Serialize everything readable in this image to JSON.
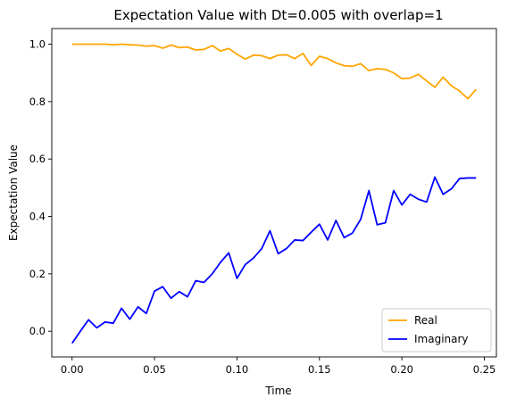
{
  "chart_data": {
    "type": "line",
    "title": "Expectation Value with Dt=0.005 with overlap=1",
    "xlabel": "Time",
    "ylabel": "Expectation Value",
    "xlim": [
      -0.0123,
      0.2573
    ],
    "ylim": [
      -0.0895,
      1.0545
    ],
    "xticks": [
      0.0,
      0.05,
      0.1,
      0.15,
      0.2,
      0.25
    ],
    "xtick_labels": [
      "0.00",
      "0.05",
      "0.10",
      "0.15",
      "0.20",
      "0.25"
    ],
    "yticks": [
      0.0,
      0.2,
      0.4,
      0.6,
      0.8,
      1.0
    ],
    "ytick_labels": [
      "0.0",
      "0.2",
      "0.4",
      "0.6",
      "0.8",
      "1.0"
    ],
    "grid": false,
    "legend_position": "lower-right",
    "x": [
      0.0,
      0.005,
      0.01,
      0.015,
      0.02,
      0.025,
      0.03,
      0.035,
      0.04,
      0.045,
      0.05,
      0.055,
      0.06,
      0.065,
      0.07,
      0.075,
      0.08,
      0.085,
      0.09,
      0.095,
      0.1,
      0.105,
      0.11,
      0.115,
      0.12,
      0.125,
      0.13,
      0.135,
      0.14,
      0.145,
      0.15,
      0.155,
      0.16,
      0.165,
      0.17,
      0.175,
      0.18,
      0.185,
      0.19,
      0.195,
      0.2,
      0.205,
      0.21,
      0.215,
      0.22,
      0.225,
      0.23,
      0.235,
      0.24,
      0.245
    ],
    "series": [
      {
        "name": "Real",
        "color": "#FFA500",
        "values": [
          1.0,
          1.0,
          1.0,
          1.0,
          1.0,
          0.998,
          1.0,
          0.998,
          0.997,
          0.993,
          0.995,
          0.986,
          0.997,
          0.988,
          0.99,
          0.98,
          0.982,
          0.995,
          0.976,
          0.985,
          0.965,
          0.948,
          0.962,
          0.96,
          0.95,
          0.962,
          0.963,
          0.95,
          0.968,
          0.926,
          0.958,
          0.95,
          0.935,
          0.925,
          0.923,
          0.932,
          0.908,
          0.915,
          0.912,
          0.9,
          0.88,
          0.882,
          0.895,
          0.872,
          0.85,
          0.885,
          0.855,
          0.837,
          0.81,
          0.843
        ]
      },
      {
        "name": "Imaginary",
        "color": "#0000FF",
        "values": [
          -0.042,
          0.0,
          0.04,
          0.012,
          0.032,
          0.028,
          0.08,
          0.042,
          0.085,
          0.062,
          0.14,
          0.155,
          0.115,
          0.138,
          0.12,
          0.176,
          0.17,
          0.2,
          0.24,
          0.273,
          0.184,
          0.232,
          0.255,
          0.288,
          0.35,
          0.27,
          0.288,
          0.318,
          0.316,
          0.345,
          0.373,
          0.318,
          0.386,
          0.326,
          0.342,
          0.39,
          0.49,
          0.371,
          0.378,
          0.49,
          0.44,
          0.477,
          0.46,
          0.45,
          0.537,
          0.477,
          0.496,
          0.532,
          0.534,
          0.534
        ]
      }
    ]
  }
}
